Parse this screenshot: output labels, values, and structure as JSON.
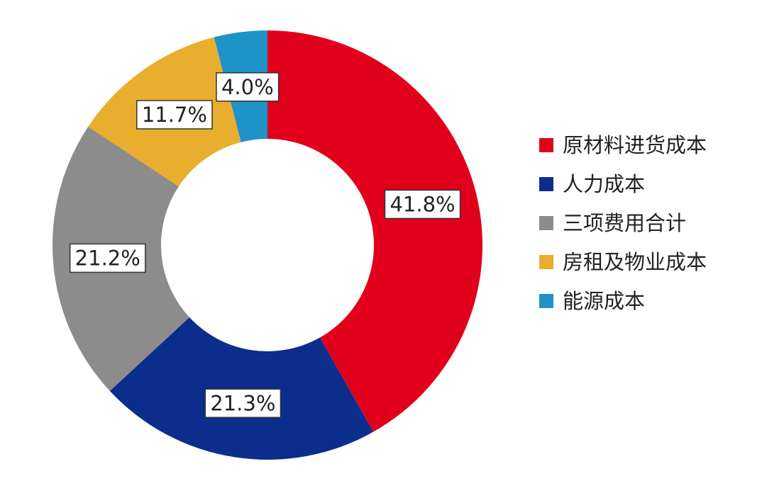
{
  "chart_data": {
    "type": "pie",
    "variant": "donut",
    "categories": [
      "原材料进货成本",
      "人力成本",
      "三项费用合计",
      "房租及物业成本",
      "能源成本"
    ],
    "values": [
      41.8,
      21.3,
      21.2,
      11.7,
      4.0
    ],
    "labels": [
      "41.8%",
      "21.3%",
      "21.2%",
      "11.7%",
      "4.0%"
    ],
    "colors": [
      "#E1001B",
      "#0C2D8C",
      "#8C8C8C",
      "#E9AE2E",
      "#1E93C8"
    ],
    "start": "top, clockwise",
    "legend_position": "right"
  }
}
